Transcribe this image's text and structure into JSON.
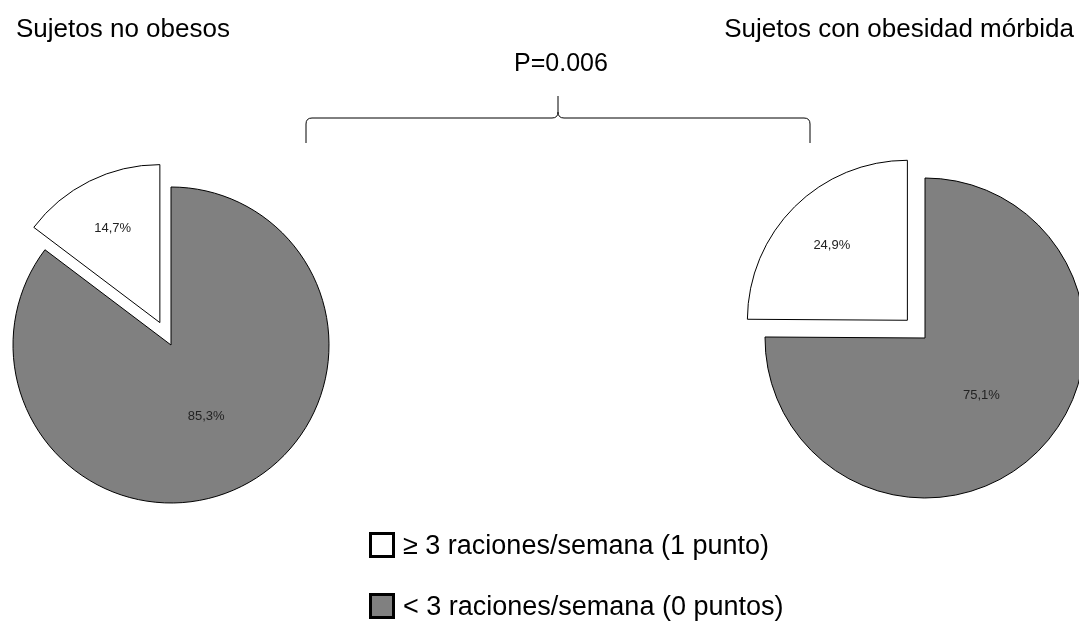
{
  "chart_data": [
    {
      "type": "pie",
      "title": "Sujetos no obesos",
      "categories": [
        "≥ 3 raciones/semana (1 punto)",
        "< 3 raciones/semana (0 puntos)"
      ],
      "values": [
        14.7,
        85.3
      ],
      "colors": [
        "#ffffff",
        "#808080"
      ],
      "value_labels": [
        "14,7%",
        "85,3%"
      ],
      "legend": "bottom",
      "annotations": [
        "P=0.006"
      ]
    },
    {
      "type": "pie",
      "title": "Sujetos con obesidad mórbida",
      "categories": [
        null,
        null
      ],
      "values": [
        24.9,
        75.1
      ],
      "colors": [
        "#ffffff",
        "#808080"
      ],
      "value_labels": [
        "24,9%",
        "75,1%"
      ]
    }
  ]
}
